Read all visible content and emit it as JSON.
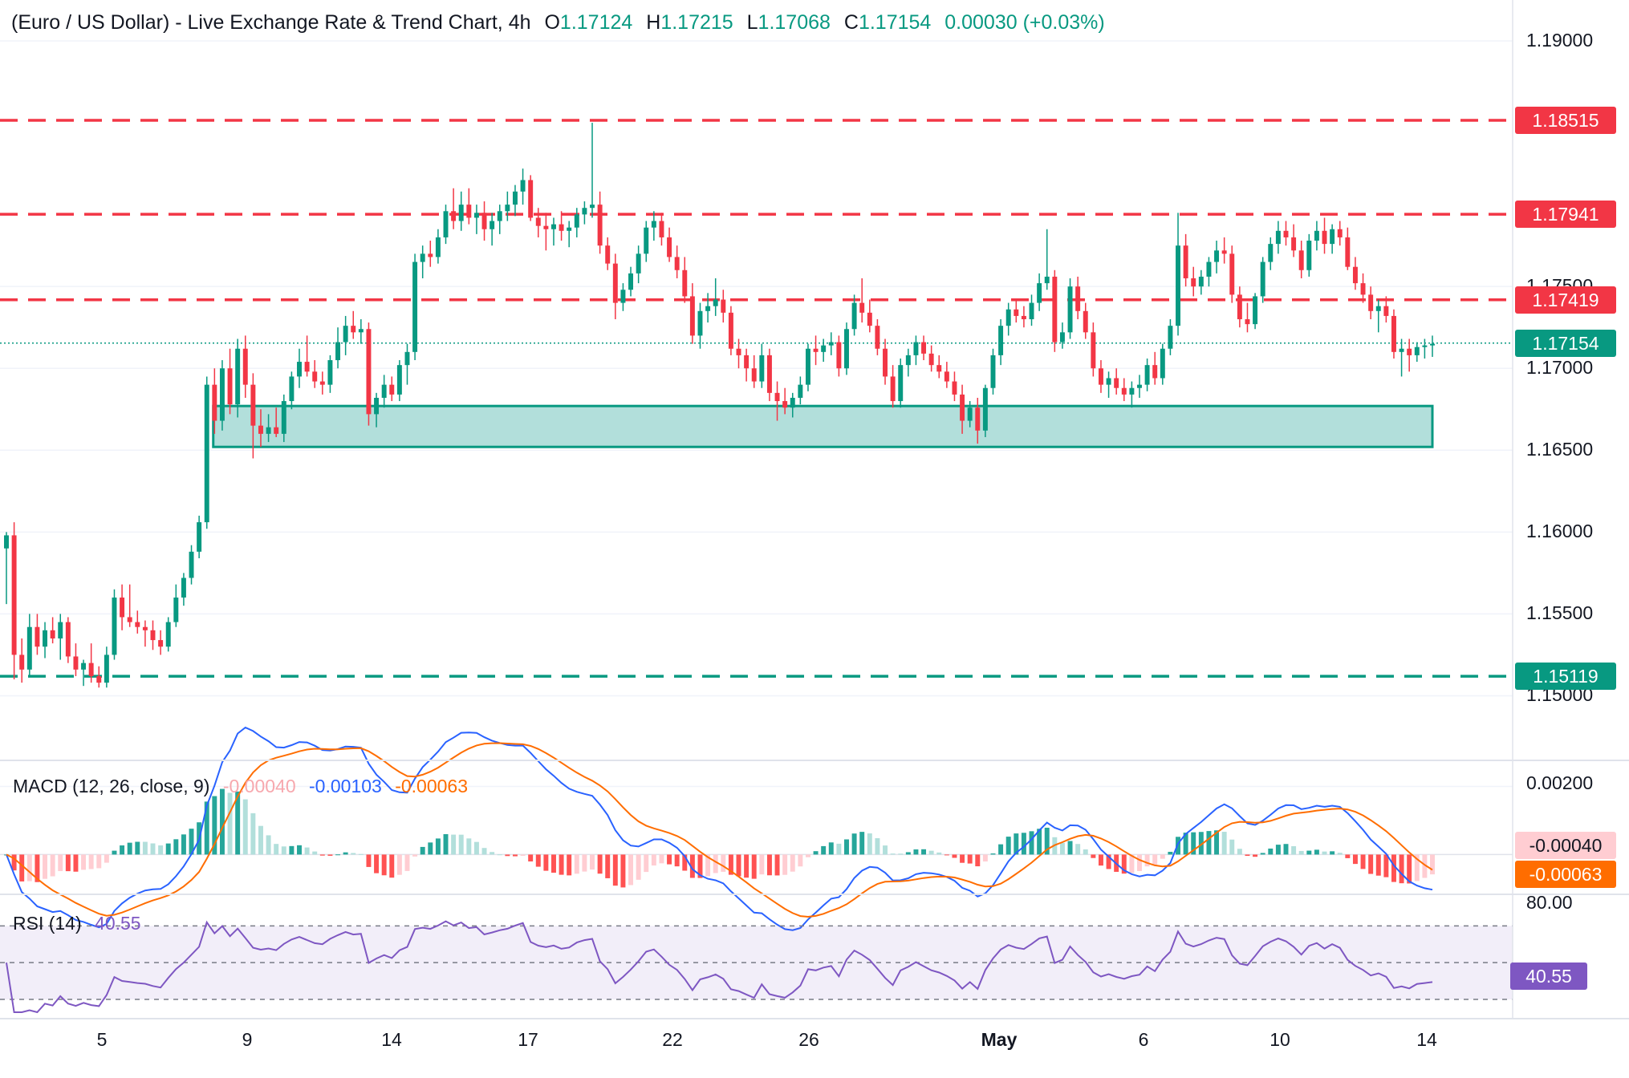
{
  "header": {
    "title": "(Euro / US Dollar) - Live Exchange Rate & Trend Chart, 4h",
    "o_label": "O",
    "o_value": "1.17124",
    "h_label": "H",
    "h_value": "1.17215",
    "l_label": "L",
    "l_value": "1.17068",
    "c_label": "C",
    "c_value": "1.17154",
    "change": "0.00030 (+0.03%)"
  },
  "colors": {
    "up": "#089981",
    "down": "#f23645",
    "macd": "#2962ff",
    "signal": "#ff6d00",
    "rsi": "#7e57c2",
    "zone_fill": "#b2dfdb",
    "zone_border": "#089981",
    "hist_up_strong": "#26a69a",
    "hist_up_weak": "#b2dfdb",
    "hist_down_strong": "#ff5252",
    "hist_down_weak": "#ffcdd2"
  },
  "price_axis": {
    "ticks": [
      "1.19000",
      "1.17500",
      "1.17000",
      "1.16500",
      "1.16000",
      "1.15500",
      "1.15000"
    ],
    "range": [
      1.1462,
      1.1925
    ]
  },
  "levels": [
    {
      "value": 1.18515,
      "label": "1.18515",
      "color": "#f23645"
    },
    {
      "value": 1.17941,
      "label": "1.17941",
      "color": "#f23645"
    },
    {
      "value": 1.17419,
      "label": "1.17419",
      "color": "#f23645"
    },
    {
      "value": 1.15119,
      "label": "1.15119",
      "color": "#089981"
    }
  ],
  "last_price": {
    "value": 1.17154,
    "label": "1.17154"
  },
  "support_zone": {
    "low": 1.1652,
    "high": 1.1677
  },
  "time_axis": {
    "labels": [
      "5",
      "9",
      "14",
      "17",
      "22",
      "26",
      "May",
      "6",
      "10",
      "14"
    ]
  },
  "macd": {
    "label": "MACD (12, 26, close, 9)",
    "hist_value": "-0.00040",
    "macd_value": "-0.00103",
    "signal_value": "-0.00063",
    "axis_ticks": [
      "0.00200",
      "0.00000"
    ],
    "range": [
      -0.00105,
      0.0026
    ],
    "tag_hist": "-0.00040",
    "tag_signal": "-0.00063"
  },
  "rsi": {
    "label": "RSI (14)",
    "value": "40.55",
    "axis_tick": "80.00",
    "upper": 70,
    "middle": 50,
    "lower": 30,
    "range": [
      23,
      85
    ]
  },
  "chart_data": {
    "type": "candlestick",
    "symbol": "EURUSD",
    "timeframe": "4h",
    "ohlc": [
      [
        1.159,
        1.16,
        1.1556,
        1.1598
      ],
      [
        1.1598,
        1.1606,
        1.151,
        1.1525
      ],
      [
        1.1525,
        1.1535,
        1.1508,
        1.1516
      ],
      [
        1.1516,
        1.155,
        1.1512,
        1.1542
      ],
      [
        1.1542,
        1.155,
        1.1525,
        1.153
      ],
      [
        1.153,
        1.1545,
        1.1523,
        1.154
      ],
      [
        1.154,
        1.1548,
        1.1532,
        1.1535
      ],
      [
        1.1535,
        1.155,
        1.1522,
        1.1545
      ],
      [
        1.1545,
        1.1548,
        1.152,
        1.1524
      ],
      [
        1.1524,
        1.1532,
        1.1512,
        1.1516
      ],
      [
        1.1516,
        1.1522,
        1.1506,
        1.152
      ],
      [
        1.152,
        1.1532,
        1.1508,
        1.1512
      ],
      [
        1.1512,
        1.1518,
        1.1505,
        1.1508
      ],
      [
        1.1508,
        1.153,
        1.1505,
        1.1525
      ],
      [
        1.1525,
        1.1565,
        1.1522,
        1.156
      ],
      [
        1.156,
        1.1568,
        1.154,
        1.1548
      ],
      [
        1.1548,
        1.1568,
        1.1542,
        1.1545
      ],
      [
        1.1545,
        1.1552,
        1.1538,
        1.1542
      ],
      [
        1.1542,
        1.1546,
        1.153,
        1.154
      ],
      [
        1.154,
        1.1546,
        1.1528,
        1.1534
      ],
      [
        1.1534,
        1.154,
        1.1525,
        1.153
      ],
      [
        1.153,
        1.1548,
        1.1527,
        1.1545
      ],
      [
        1.1545,
        1.1568,
        1.1542,
        1.156
      ],
      [
        1.156,
        1.1575,
        1.1555,
        1.1572
      ],
      [
        1.1572,
        1.1592,
        1.1568,
        1.1588
      ],
      [
        1.1588,
        1.161,
        1.1584,
        1.1606
      ],
      [
        1.1606,
        1.1695,
        1.1602,
        1.169
      ],
      [
        1.169,
        1.17,
        1.166,
        1.1668
      ],
      [
        1.1668,
        1.1705,
        1.1662,
        1.17
      ],
      [
        1.17,
        1.1712,
        1.1672,
        1.1678
      ],
      [
        1.1678,
        1.1718,
        1.167,
        1.1712
      ],
      [
        1.1712,
        1.172,
        1.1682,
        1.169
      ],
      [
        1.169,
        1.1697,
        1.1645,
        1.1665
      ],
      [
        1.1665,
        1.1675,
        1.1652,
        1.166
      ],
      [
        1.166,
        1.1672,
        1.1655,
        1.1664
      ],
      [
        1.1664,
        1.1676,
        1.1658,
        1.166
      ],
      [
        1.166,
        1.1684,
        1.1655,
        1.168
      ],
      [
        1.168,
        1.1698,
        1.1675,
        1.1695
      ],
      [
        1.1695,
        1.1712,
        1.1688,
        1.1704
      ],
      [
        1.1704,
        1.172,
        1.1695,
        1.1698
      ],
      [
        1.1698,
        1.1705,
        1.1688,
        1.1692
      ],
      [
        1.1692,
        1.1698,
        1.1684,
        1.169
      ],
      [
        1.169,
        1.1708,
        1.1685,
        1.1705
      ],
      [
        1.1705,
        1.1725,
        1.17,
        1.1716
      ],
      [
        1.1716,
        1.1732,
        1.1708,
        1.1726
      ],
      [
        1.1726,
        1.1735,
        1.1718,
        1.1722
      ],
      [
        1.1722,
        1.173,
        1.1715,
        1.1724
      ],
      [
        1.1724,
        1.1728,
        1.1665,
        1.1672
      ],
      [
        1.1672,
        1.1685,
        1.1664,
        1.1682
      ],
      [
        1.1682,
        1.1696,
        1.1676,
        1.169
      ],
      [
        1.169,
        1.1695,
        1.168,
        1.1684
      ],
      [
        1.1684,
        1.1705,
        1.168,
        1.1702
      ],
      [
        1.1702,
        1.1715,
        1.169,
        1.171
      ],
      [
        1.171,
        1.177,
        1.1705,
        1.1765
      ],
      [
        1.1765,
        1.1775,
        1.1755,
        1.177
      ],
      [
        1.177,
        1.1778,
        1.1762,
        1.1768
      ],
      [
        1.1768,
        1.1785,
        1.1764,
        1.178
      ],
      [
        1.178,
        1.18,
        1.1776,
        1.1796
      ],
      [
        1.1796,
        1.181,
        1.1785,
        1.179
      ],
      [
        1.179,
        1.1808,
        1.1784,
        1.18
      ],
      [
        1.18,
        1.181,
        1.1788,
        1.1792
      ],
      [
        1.1792,
        1.18,
        1.1782,
        1.1795
      ],
      [
        1.1795,
        1.1802,
        1.1778,
        1.1785
      ],
      [
        1.1785,
        1.1795,
        1.1775,
        1.179
      ],
      [
        1.179,
        1.18,
        1.1782,
        1.1796
      ],
      [
        1.1796,
        1.1808,
        1.179,
        1.18
      ],
      [
        1.18,
        1.1812,
        1.1793,
        1.1808
      ],
      [
        1.1808,
        1.1822,
        1.18,
        1.1815
      ],
      [
        1.1815,
        1.1818,
        1.179,
        1.1792
      ],
      [
        1.1792,
        1.1798,
        1.178,
        1.1787
      ],
      [
        1.1787,
        1.1795,
        1.1772,
        1.1785
      ],
      [
        1.1785,
        1.1792,
        1.1775,
        1.1788
      ],
      [
        1.1788,
        1.1796,
        1.1778,
        1.1784
      ],
      [
        1.1784,
        1.179,
        1.1774,
        1.1786
      ],
      [
        1.1786,
        1.1798,
        1.178,
        1.1794
      ],
      [
        1.1794,
        1.1802,
        1.1788,
        1.1798
      ],
      [
        1.1798,
        1.185,
        1.1792,
        1.18
      ],
      [
        1.18,
        1.1808,
        1.177,
        1.1775
      ],
      [
        1.1775,
        1.178,
        1.176,
        1.1764
      ],
      [
        1.1764,
        1.177,
        1.173,
        1.174
      ],
      [
        1.174,
        1.1752,
        1.1735,
        1.1748
      ],
      [
        1.1748,
        1.1762,
        1.1744,
        1.1758
      ],
      [
        1.1758,
        1.1775,
        1.1752,
        1.177
      ],
      [
        1.177,
        1.179,
        1.1765,
        1.1786
      ],
      [
        1.1786,
        1.1796,
        1.1778,
        1.179
      ],
      [
        1.179,
        1.1795,
        1.1775,
        1.178
      ],
      [
        1.178,
        1.1786,
        1.1765,
        1.1768
      ],
      [
        1.1768,
        1.1775,
        1.1755,
        1.176
      ],
      [
        1.176,
        1.1768,
        1.174,
        1.1744
      ],
      [
        1.1744,
        1.1752,
        1.1715,
        1.172
      ],
      [
        1.172,
        1.174,
        1.1712,
        1.1735
      ],
      [
        1.1735,
        1.1746,
        1.1728,
        1.1738
      ],
      [
        1.1738,
        1.1755,
        1.1732,
        1.1742
      ],
      [
        1.1742,
        1.1748,
        1.1728,
        1.1734
      ],
      [
        1.1734,
        1.1738,
        1.1708,
        1.1712
      ],
      [
        1.1712,
        1.1718,
        1.17,
        1.1708
      ],
      [
        1.1708,
        1.1712,
        1.1692,
        1.17
      ],
      [
        1.17,
        1.1708,
        1.1688,
        1.1692
      ],
      [
        1.1692,
        1.1715,
        1.1688,
        1.1708
      ],
      [
        1.1708,
        1.1712,
        1.168,
        1.1685
      ],
      [
        1.1685,
        1.1692,
        1.1668,
        1.168
      ],
      [
        1.168,
        1.1688,
        1.1672,
        1.1676
      ],
      [
        1.1676,
        1.1685,
        1.167,
        1.1682
      ],
      [
        1.1682,
        1.1695,
        1.1678,
        1.169
      ],
      [
        1.169,
        1.1715,
        1.1686,
        1.1712
      ],
      [
        1.1712,
        1.172,
        1.1702,
        1.171
      ],
      [
        1.171,
        1.1718,
        1.1704,
        1.1714
      ],
      [
        1.1714,
        1.1722,
        1.1708,
        1.1716
      ],
      [
        1.1716,
        1.172,
        1.1695,
        1.17
      ],
      [
        1.17,
        1.1728,
        1.1696,
        1.1724
      ],
      [
        1.1724,
        1.1745,
        1.172,
        1.174
      ],
      [
        1.174,
        1.1755,
        1.1728,
        1.1734
      ],
      [
        1.1734,
        1.1742,
        1.1722,
        1.1726
      ],
      [
        1.1726,
        1.173,
        1.1708,
        1.1712
      ],
      [
        1.1712,
        1.1718,
        1.169,
        1.1695
      ],
      [
        1.1695,
        1.1702,
        1.1676,
        1.168
      ],
      [
        1.168,
        1.1706,
        1.1676,
        1.1702
      ],
      [
        1.1702,
        1.1712,
        1.1695,
        1.1708
      ],
      [
        1.1708,
        1.172,
        1.1702,
        1.1716
      ],
      [
        1.1716,
        1.172,
        1.1705,
        1.1709
      ],
      [
        1.1709,
        1.1714,
        1.1698,
        1.1702
      ],
      [
        1.1702,
        1.1708,
        1.1694,
        1.1698
      ],
      [
        1.1698,
        1.1704,
        1.1688,
        1.1692
      ],
      [
        1.1692,
        1.1698,
        1.168,
        1.1684
      ],
      [
        1.1684,
        1.169,
        1.166,
        1.1668
      ],
      [
        1.1668,
        1.168,
        1.1664,
        1.1676
      ],
      [
        1.1676,
        1.1682,
        1.1654,
        1.1662
      ],
      [
        1.1662,
        1.169,
        1.1658,
        1.1688
      ],
      [
        1.1688,
        1.1712,
        1.1684,
        1.1708
      ],
      [
        1.1708,
        1.173,
        1.1702,
        1.1726
      ],
      [
        1.1726,
        1.174,
        1.172,
        1.1736
      ],
      [
        1.1736,
        1.1742,
        1.1728,
        1.1732
      ],
      [
        1.1732,
        1.1738,
        1.1725,
        1.173
      ],
      [
        1.173,
        1.1745,
        1.1726,
        1.174
      ],
      [
        1.174,
        1.1758,
        1.1735,
        1.1752
      ],
      [
        1.1752,
        1.1785,
        1.1748,
        1.1756
      ],
      [
        1.1756,
        1.176,
        1.171,
        1.1716
      ],
      [
        1.1716,
        1.1728,
        1.1712,
        1.1722
      ],
      [
        1.1722,
        1.1755,
        1.1718,
        1.175
      ],
      [
        1.175,
        1.1756,
        1.173,
        1.1735
      ],
      [
        1.1735,
        1.174,
        1.1718,
        1.1722
      ],
      [
        1.1722,
        1.1728,
        1.1695,
        1.17
      ],
      [
        1.17,
        1.1705,
        1.1685,
        1.169
      ],
      [
        1.169,
        1.1698,
        1.1682,
        1.1694
      ],
      [
        1.1694,
        1.17,
        1.1684,
        1.1688
      ],
      [
        1.1688,
        1.1694,
        1.168,
        1.1684
      ],
      [
        1.1684,
        1.1692,
        1.1676,
        1.1688
      ],
      [
        1.1688,
        1.1696,
        1.1682,
        1.169
      ],
      [
        1.169,
        1.1706,
        1.1686,
        1.1702
      ],
      [
        1.1702,
        1.171,
        1.169,
        1.1694
      ],
      [
        1.1694,
        1.1715,
        1.169,
        1.1712
      ],
      [
        1.1712,
        1.173,
        1.1708,
        1.1726
      ],
      [
        1.1726,
        1.1795,
        1.172,
        1.1775
      ],
      [
        1.1775,
        1.1782,
        1.175,
        1.1755
      ],
      [
        1.1755,
        1.1762,
        1.1744,
        1.175
      ],
      [
        1.175,
        1.176,
        1.1745,
        1.1756
      ],
      [
        1.1756,
        1.1768,
        1.175,
        1.1765
      ],
      [
        1.1765,
        1.1778,
        1.1758,
        1.1772
      ],
      [
        1.1772,
        1.178,
        1.1764,
        1.177
      ],
      [
        1.177,
        1.1775,
        1.174,
        1.1745
      ],
      [
        1.1745,
        1.175,
        1.1725,
        1.173
      ],
      [
        1.173,
        1.174,
        1.1722,
        1.1727
      ],
      [
        1.1727,
        1.1746,
        1.1724,
        1.1744
      ],
      [
        1.1744,
        1.1768,
        1.174,
        1.1765
      ],
      [
        1.1765,
        1.178,
        1.176,
        1.1776
      ],
      [
        1.1776,
        1.179,
        1.177,
        1.1784
      ],
      [
        1.1784,
        1.179,
        1.1775,
        1.178
      ],
      [
        1.178,
        1.1788,
        1.1768,
        1.1772
      ],
      [
        1.1772,
        1.1778,
        1.1755,
        1.176
      ],
      [
        1.176,
        1.1782,
        1.1756,
        1.1778
      ],
      [
        1.1778,
        1.179,
        1.1772,
        1.1784
      ],
      [
        1.1784,
        1.1792,
        1.177,
        1.1776
      ],
      [
        1.1776,
        1.1788,
        1.177,
        1.1785
      ],
      [
        1.1785,
        1.179,
        1.1775,
        1.178
      ],
      [
        1.178,
        1.1786,
        1.176,
        1.1762
      ],
      [
        1.1762,
        1.1768,
        1.1748,
        1.1752
      ],
      [
        1.1752,
        1.1758,
        1.174,
        1.1745
      ],
      [
        1.1745,
        1.175,
        1.173,
        1.1735
      ],
      [
        1.1735,
        1.1742,
        1.1722,
        1.1738
      ],
      [
        1.1738,
        1.1744,
        1.1728,
        1.1732
      ],
      [
        1.1732,
        1.1736,
        1.1706,
        1.171
      ],
      [
        1.171,
        1.1718,
        1.1695,
        1.1712
      ],
      [
        1.1712,
        1.1718,
        1.1698,
        1.1708
      ],
      [
        1.1708,
        1.1716,
        1.1704,
        1.1713
      ],
      [
        1.1713,
        1.1718,
        1.1706,
        1.1714
      ],
      [
        1.1714,
        1.172,
        1.1707,
        1.1715
      ]
    ],
    "levels": [
      1.18515,
      1.17941,
      1.17419,
      1.15119
    ],
    "support_zone": [
      1.1652,
      1.1677
    ],
    "x_tick_labels": [
      "5",
      "9",
      "14",
      "17",
      "22",
      "26",
      "May",
      "6",
      "10",
      "14"
    ],
    "y_range": [
      1.1462,
      1.1925
    ],
    "last": 1.17154
  }
}
